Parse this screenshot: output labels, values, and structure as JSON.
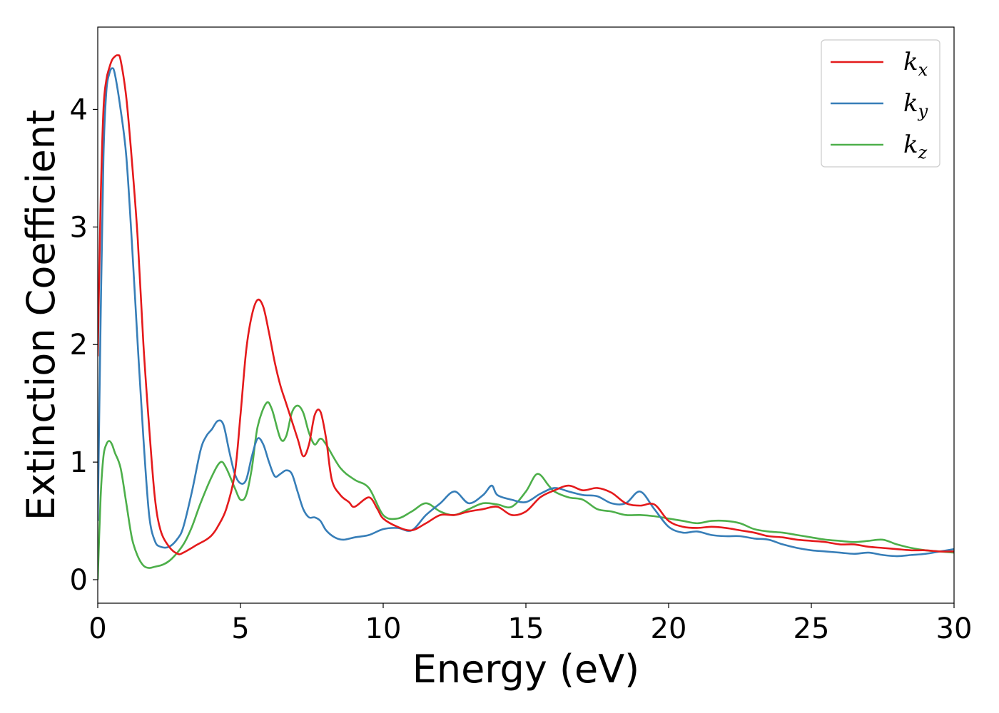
{
  "chart_data": {
    "type": "line",
    "xlabel": "Energy (eV)",
    "ylabel": "Extinction Coefficient",
    "xlim": [
      0,
      30
    ],
    "ylim": [
      -0.2,
      4.7
    ],
    "xticks": [
      "0",
      "5",
      "10",
      "15",
      "20",
      "25",
      "30"
    ],
    "yticks": [
      "0",
      "1",
      "2",
      "3",
      "4"
    ],
    "grid": false,
    "legend_position": "top-right",
    "series": [
      {
        "name": "k",
        "subscript": "x",
        "color": "#e41a1c",
        "x": [
          0,
          0.1,
          0.2,
          0.3,
          0.4,
          0.5,
          0.6,
          0.7,
          0.8,
          1.0,
          1.2,
          1.4,
          1.6,
          1.8,
          2.0,
          2.2,
          2.5,
          2.8,
          3.0,
          3.5,
          3.8,
          4.0,
          4.2,
          4.5,
          4.8,
          5.0,
          5.2,
          5.4,
          5.6,
          5.8,
          6.0,
          6.2,
          6.4,
          6.6,
          7.0,
          7.2,
          7.4,
          7.6,
          7.8,
          8.0,
          8.2,
          8.5,
          8.8,
          9.0,
          9.5,
          9.8,
          10.0,
          10.5,
          11.0,
          11.5,
          12.0,
          12.5,
          13.0,
          13.5,
          14.0,
          14.5,
          15.0,
          15.5,
          16.0,
          16.5,
          17.0,
          17.5,
          18.0,
          18.5,
          19.0,
          19.5,
          20.0,
          20.5,
          21.0,
          21.5,
          22.0,
          22.5,
          23.0,
          23.5,
          24.0,
          24.5,
          25.0,
          25.5,
          26.0,
          26.5,
          27.0,
          27.5,
          28.0,
          28.5,
          29.0,
          29.5,
          30.0
        ],
        "y": [
          1.9,
          3.2,
          4.0,
          4.25,
          4.35,
          4.42,
          4.45,
          4.46,
          4.42,
          4.1,
          3.55,
          2.9,
          2.0,
          1.3,
          0.7,
          0.42,
          0.28,
          0.22,
          0.23,
          0.3,
          0.34,
          0.38,
          0.45,
          0.6,
          0.9,
          1.4,
          1.95,
          2.25,
          2.38,
          2.32,
          2.1,
          1.85,
          1.65,
          1.5,
          1.2,
          1.05,
          1.15,
          1.4,
          1.43,
          1.2,
          0.85,
          0.72,
          0.66,
          0.62,
          0.7,
          0.6,
          0.52,
          0.45,
          0.42,
          0.48,
          0.55,
          0.55,
          0.58,
          0.6,
          0.62,
          0.55,
          0.58,
          0.7,
          0.76,
          0.8,
          0.76,
          0.78,
          0.74,
          0.65,
          0.63,
          0.64,
          0.5,
          0.45,
          0.44,
          0.45,
          0.44,
          0.42,
          0.4,
          0.37,
          0.36,
          0.34,
          0.33,
          0.32,
          0.3,
          0.3,
          0.28,
          0.27,
          0.26,
          0.25,
          0.25,
          0.24,
          0.24
        ]
      },
      {
        "name": "k",
        "subscript": "y",
        "color": "#377eb8",
        "x": [
          0,
          0.1,
          0.2,
          0.3,
          0.4,
          0.5,
          0.6,
          0.8,
          1.0,
          1.2,
          1.4,
          1.6,
          1.8,
          2.0,
          2.2,
          2.5,
          2.8,
          3.0,
          3.3,
          3.6,
          3.8,
          4.0,
          4.2,
          4.4,
          4.6,
          4.8,
          5.0,
          5.2,
          5.4,
          5.6,
          5.8,
          6.0,
          6.2,
          6.4,
          6.6,
          6.8,
          7.0,
          7.2,
          7.4,
          7.6,
          7.8,
          8.0,
          8.3,
          8.6,
          9.0,
          9.5,
          10.0,
          10.5,
          11.0,
          11.5,
          12.0,
          12.5,
          13.0,
          13.5,
          13.8,
          14.0,
          14.5,
          15.0,
          15.5,
          16.0,
          16.5,
          17.0,
          17.5,
          18.0,
          18.5,
          19.0,
          19.5,
          20.0,
          20.5,
          21.0,
          21.5,
          22.0,
          22.5,
          23.0,
          23.5,
          24.0,
          24.5,
          25.0,
          25.5,
          26.0,
          26.5,
          27.0,
          27.5,
          28.0,
          28.5,
          29.0,
          29.5,
          30.0
        ],
        "y": [
          0.5,
          2.2,
          3.6,
          4.15,
          4.3,
          4.35,
          4.3,
          4.0,
          3.6,
          2.85,
          2.0,
          1.2,
          0.55,
          0.33,
          0.28,
          0.28,
          0.35,
          0.45,
          0.75,
          1.1,
          1.22,
          1.28,
          1.35,
          1.32,
          1.1,
          0.9,
          0.82,
          0.85,
          1.05,
          1.2,
          1.15,
          1.0,
          0.88,
          0.9,
          0.93,
          0.9,
          0.75,
          0.6,
          0.53,
          0.53,
          0.5,
          0.42,
          0.36,
          0.34,
          0.36,
          0.38,
          0.43,
          0.44,
          0.42,
          0.55,
          0.65,
          0.75,
          0.65,
          0.72,
          0.8,
          0.72,
          0.68,
          0.66,
          0.73,
          0.78,
          0.75,
          0.72,
          0.71,
          0.65,
          0.65,
          0.75,
          0.6,
          0.45,
          0.4,
          0.41,
          0.38,
          0.37,
          0.37,
          0.35,
          0.34,
          0.3,
          0.27,
          0.25,
          0.24,
          0.23,
          0.22,
          0.23,
          0.21,
          0.2,
          0.21,
          0.22,
          0.24,
          0.26
        ]
      },
      {
        "name": "k",
        "subscript": "z",
        "color": "#4daf4a",
        "x": [
          0,
          0.1,
          0.2,
          0.3,
          0.4,
          0.5,
          0.6,
          0.8,
          1.0,
          1.2,
          1.4,
          1.6,
          1.8,
          2.0,
          2.3,
          2.6,
          3.0,
          3.3,
          3.6,
          4.0,
          4.3,
          4.5,
          4.8,
          5.0,
          5.2,
          5.4,
          5.6,
          5.9,
          6.1,
          6.4,
          6.6,
          6.8,
          7.0,
          7.2,
          7.4,
          7.6,
          7.8,
          8.0,
          8.5,
          9.0,
          9.5,
          10.0,
          10.5,
          11.0,
          11.5,
          12.0,
          12.5,
          13.0,
          13.5,
          14.0,
          14.5,
          15.0,
          15.4,
          15.8,
          16.0,
          16.5,
          17.0,
          17.5,
          18.0,
          18.5,
          19.0,
          19.5,
          20.0,
          20.5,
          21.0,
          21.5,
          22.0,
          22.5,
          23.0,
          23.5,
          24.0,
          24.5,
          25.0,
          25.5,
          26.0,
          26.5,
          27.0,
          27.5,
          28.0,
          28.5,
          29.0,
          29.5,
          30.0
        ],
        "y": [
          0.0,
          0.7,
          1.05,
          1.15,
          1.18,
          1.15,
          1.08,
          0.95,
          0.65,
          0.35,
          0.2,
          0.12,
          0.1,
          0.11,
          0.13,
          0.18,
          0.3,
          0.45,
          0.65,
          0.88,
          1.0,
          0.95,
          0.78,
          0.68,
          0.72,
          0.95,
          1.3,
          1.5,
          1.45,
          1.2,
          1.22,
          1.42,
          1.48,
          1.42,
          1.25,
          1.15,
          1.2,
          1.15,
          0.95,
          0.85,
          0.78,
          0.55,
          0.52,
          0.58,
          0.65,
          0.58,
          0.55,
          0.6,
          0.65,
          0.64,
          0.62,
          0.75,
          0.9,
          0.8,
          0.75,
          0.7,
          0.68,
          0.6,
          0.58,
          0.55,
          0.55,
          0.54,
          0.52,
          0.5,
          0.48,
          0.5,
          0.5,
          0.48,
          0.43,
          0.41,
          0.4,
          0.38,
          0.36,
          0.34,
          0.33,
          0.32,
          0.33,
          0.34,
          0.3,
          0.27,
          0.25,
          0.24,
          0.23
        ]
      }
    ]
  }
}
